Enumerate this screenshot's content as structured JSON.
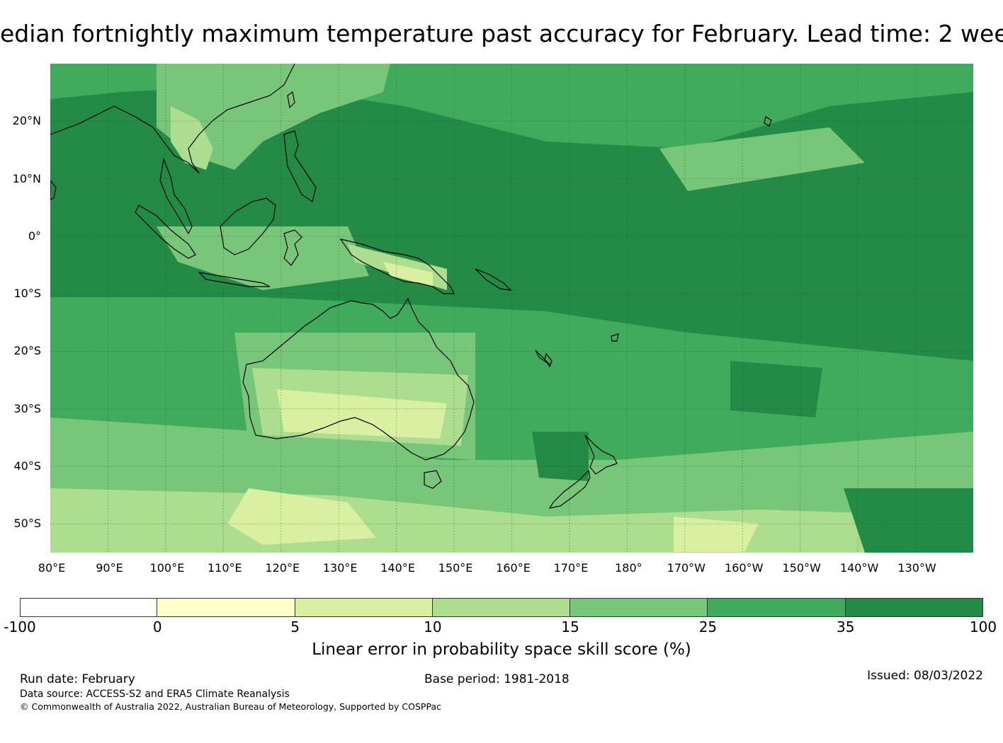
{
  "title": "edian fortnightly maximum temperature past accuracy for February. Lead time: 2 wee",
  "map": {
    "lat_labels": [
      "20°N",
      "10°N",
      "0°",
      "10°S",
      "20°S",
      "30°S",
      "40°S",
      "50°S"
    ],
    "lon_labels": [
      "80°E",
      "90°E",
      "100°E",
      "110°E",
      "120°E",
      "130°E",
      "140°E",
      "150°E",
      "160°E",
      "170°E",
      "180°",
      "170°W",
      "160°W",
      "150°W",
      "140°W",
      "130°W"
    ],
    "lat_range": [
      -55,
      30
    ],
    "lon_range": [
      80,
      240
    ]
  },
  "legend": {
    "ticks": [
      "-100",
      "0",
      "5",
      "10",
      "15",
      "25",
      "35",
      "100"
    ],
    "colors": [
      "#ffffff",
      "#ffffcc",
      "#d9f0a3",
      "#addd8e",
      "#78c679",
      "#41ab5d",
      "#238b45"
    ],
    "label": "Linear error in probability space skill score (%)"
  },
  "footer": {
    "run_date": "Run date: February",
    "base_period": "Base period: 1981-2018",
    "issued": "Issued: 08/03/2022",
    "data_source": "Data source: ACCESS-S2 and ERA5 Climate Reanalysis",
    "copyright": "© Commonwealth of Australia 2022, Australian Bureau of Meteorology, Supported by COSPPac"
  }
}
